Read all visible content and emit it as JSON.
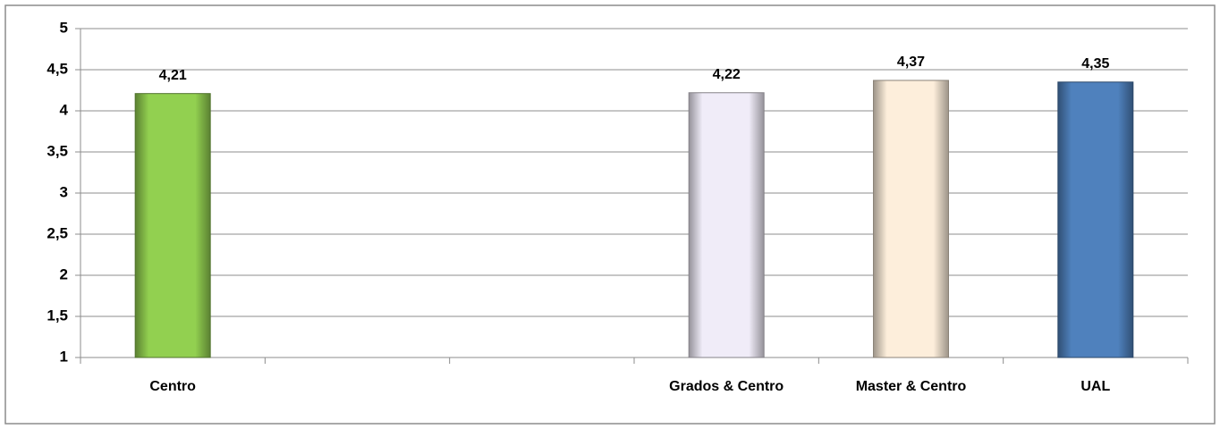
{
  "chart_data": {
    "type": "bar",
    "categories": [
      "Centro",
      null,
      null,
      "Grados & Centro",
      "Master & Centro",
      "UAL"
    ],
    "values": [
      4.21,
      null,
      null,
      4.22,
      4.37,
      4.35
    ],
    "value_labels": [
      "4,21",
      null,
      null,
      "4,22",
      "4,37",
      "4,35"
    ],
    "colors": [
      "#92d050",
      "#c4bd97",
      "#e6b9b8",
      "#f0ecf8",
      "#fdeedb",
      "#4f81bd"
    ],
    "ylim": [
      1,
      5
    ],
    "yticks": [
      1,
      {
        "value": 1.5,
        "label": "1,5"
      },
      2,
      {
        "value": 2.5,
        "label": "2,5"
      },
      3,
      {
        "value": 3.5,
        "label": "3,5"
      },
      4,
      {
        "value": 4.5,
        "label": "4,5"
      },
      5
    ],
    "grid": true
  }
}
